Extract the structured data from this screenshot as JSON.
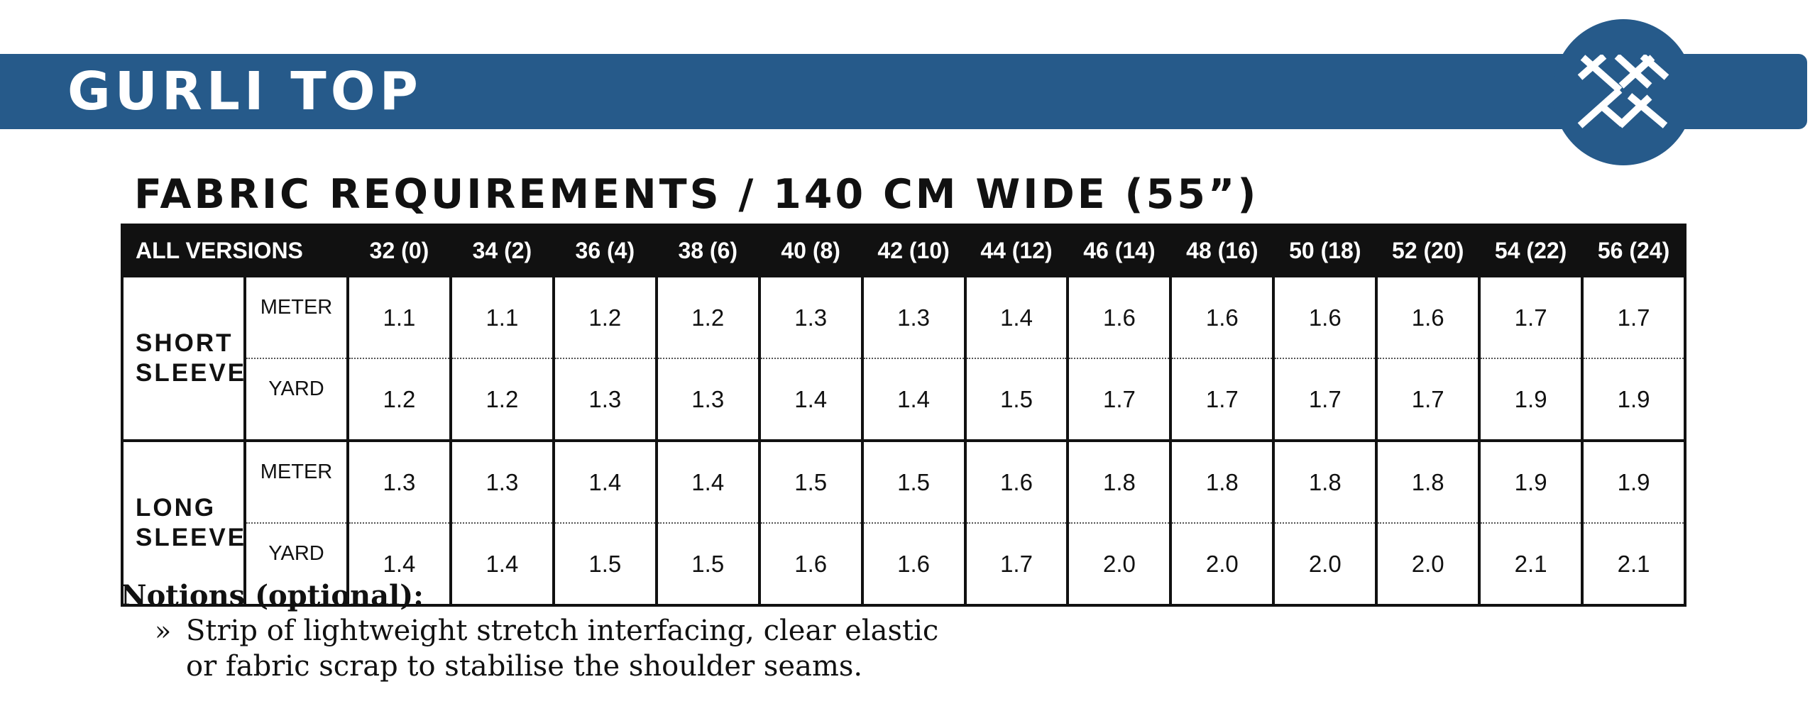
{
  "header": {
    "title": "GURLI TOP",
    "logo_icon": "crossed-stitches-logo",
    "brand_color": "#265a8a"
  },
  "section": {
    "heading": "FABRIC REQUIREMENTS / 140 CM WIDE (55”)"
  },
  "table": {
    "corner_label": "ALL VERSIONS",
    "sizes": [
      "32 (0)",
      "34 (2)",
      "36 (4)",
      "38 (6)",
      "40 (8)",
      "42 (10)",
      "44 (12)",
      "46 (14)",
      "48 (16)",
      "50 (18)",
      "52 (20)",
      "54 (22)",
      "56 (24)"
    ],
    "groups": [
      {
        "name_line1": "SHORT",
        "name_line2": "SLEEVE",
        "rows": [
          {
            "unit": "METER",
            "values": [
              "1.1",
              "1.1",
              "1.2",
              "1.2",
              "1.3",
              "1.3",
              "1.4",
              "1.6",
              "1.6",
              "1.6",
              "1.6",
              "1.7",
              "1.7"
            ]
          },
          {
            "unit": "YARD",
            "values": [
              "1.2",
              "1.2",
              "1.3",
              "1.3",
              "1.4",
              "1.4",
              "1.5",
              "1.7",
              "1.7",
              "1.7",
              "1.7",
              "1.9",
              "1.9"
            ]
          }
        ]
      },
      {
        "name_line1": "LONG",
        "name_line2": "SLEEVE",
        "rows": [
          {
            "unit": "METER",
            "values": [
              "1.3",
              "1.3",
              "1.4",
              "1.4",
              "1.5",
              "1.5",
              "1.6",
              "1.8",
              "1.8",
              "1.8",
              "1.8",
              "1.9",
              "1.9"
            ]
          },
          {
            "unit": "YARD",
            "values": [
              "1.4",
              "1.4",
              "1.5",
              "1.5",
              "1.6",
              "1.6",
              "1.7",
              "2.0",
              "2.0",
              "2.0",
              "2.0",
              "2.1",
              "2.1"
            ]
          }
        ]
      }
    ]
  },
  "notions": {
    "title": "Notions (optional):",
    "bullet": "»",
    "items": [
      {
        "line1": "Strip of lightweight stretch interfacing, clear elastic",
        "line2": "or fabric scrap to stabilise the shoulder seams."
      }
    ]
  }
}
